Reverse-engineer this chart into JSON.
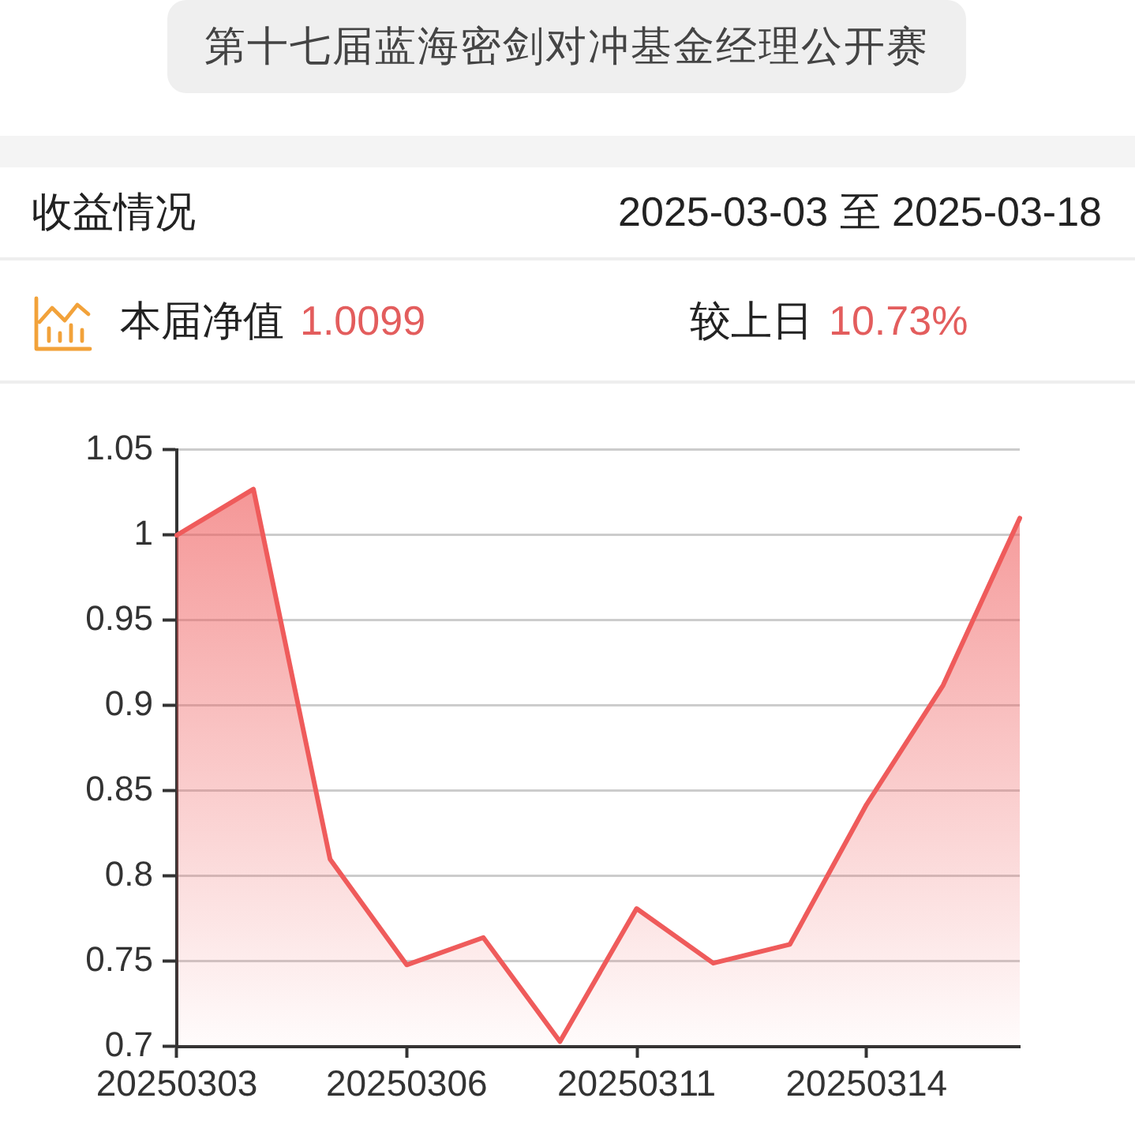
{
  "chart_data": {
    "type": "area",
    "title": "第十七届蓝海密剑对冲基金经理公开赛",
    "subtitle": "收益情况",
    "annotations": [
      "2025-03-03 至 2025-03-18",
      "本届净值",
      "1.0099",
      "较上日",
      "10.73%"
    ],
    "categories": [
      "20250303",
      null,
      null,
      "20250306",
      null,
      null,
      "20250311",
      null,
      null,
      "20250314",
      null,
      null
    ],
    "values": [
      1.0,
      1.027,
      0.81,
      0.748,
      0.764,
      0.703,
      0.781,
      0.749,
      0.76,
      0.842,
      0.912,
      1.01
    ],
    "color": "#ef5b5b",
    "ylim": [
      0.7,
      1.05
    ],
    "yticks": [
      0.7,
      0.75,
      0.8,
      0.85,
      0.9,
      0.95,
      1,
      1.05
    ],
    "grid": "y",
    "legend": false,
    "marker": "none"
  }
}
